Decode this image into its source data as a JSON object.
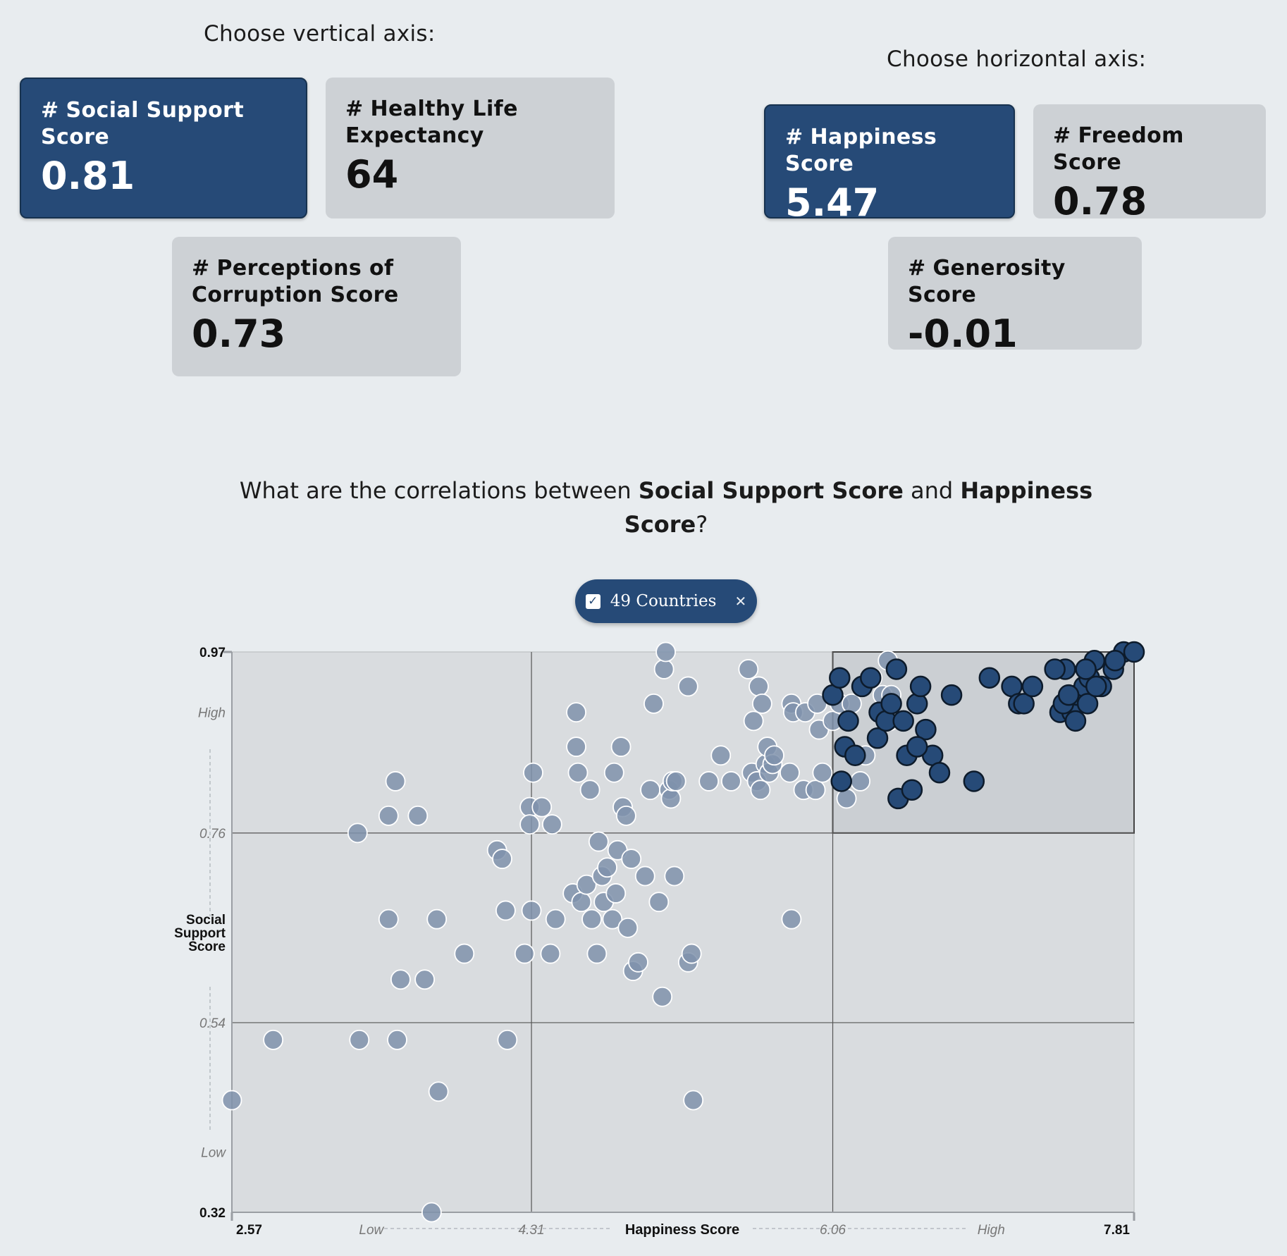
{
  "vertical_heading": "Choose vertical axis:",
  "horizontal_heading": "Choose horizontal axis:",
  "vertical_cards": [
    {
      "hash": "#",
      "label": "Social Support Score",
      "value": "0.81",
      "selected": true
    },
    {
      "hash": "#",
      "label": "Healthy Life Expectancy",
      "value": "64",
      "selected": false
    },
    {
      "hash": "#",
      "label": "Perceptions of Corruption Score",
      "value": "0.73",
      "selected": false
    }
  ],
  "horizontal_cards": [
    {
      "hash": "#",
      "label": "Happiness Score",
      "value": "5.47",
      "selected": true
    },
    {
      "hash": "#",
      "label": "Freedom Score",
      "value": "0.78",
      "selected": false
    },
    {
      "hash": "#",
      "label": "Generosity Score",
      "value": "-0.01",
      "selected": false
    }
  ],
  "question": {
    "prefix": "What are the correlations between ",
    "y_name": "Social Support Score",
    "middle": " and ",
    "x_name": "Happiness Score",
    "suffix": "?"
  },
  "filter_pill": {
    "label": "49 Countries",
    "check_icon": "checkbox-checked-icon",
    "close_icon": "close-icon"
  },
  "colors": {
    "highlight": "#264a77",
    "muted_point": "#7f92ab",
    "plot_bg": "#d9dcdf",
    "selection_bg": "#cbcfd3"
  },
  "chart_data": {
    "type": "scatter",
    "xlabel": "Happiness Score",
    "ylabel": "Social Support Score",
    "xlim": [
      2.57,
      7.81
    ],
    "ylim": [
      0.32,
      0.97
    ],
    "x_ticks": [
      {
        "label": "2.57",
        "value": 2.57,
        "style": "bold"
      },
      {
        "label": "Low",
        "value": 3.38,
        "style": "italic"
      },
      {
        "label": "4.31",
        "value": 4.31,
        "style": "italic"
      },
      {
        "label": "6.06",
        "value": 6.06,
        "style": "italic"
      },
      {
        "label": "High",
        "value": 6.98,
        "style": "italic"
      },
      {
        "label": "7.81",
        "value": 7.81,
        "style": "bold"
      }
    ],
    "y_ticks": [
      {
        "label": "0.97",
        "value": 0.97,
        "style": "bold"
      },
      {
        "label": "High",
        "value": 0.9,
        "style": "italic"
      },
      {
        "label": "0.76",
        "value": 0.76,
        "style": "italic"
      },
      {
        "label": "0.54",
        "value": 0.54,
        "style": "italic"
      },
      {
        "label": "Low",
        "value": 0.39,
        "style": "italic"
      },
      {
        "label": "0.32",
        "value": 0.32,
        "style": "bold"
      }
    ],
    "gridlines_x": [
      4.31,
      6.06
    ],
    "gridlines_y": [
      0.76,
      0.54
    ],
    "selection_box": {
      "x": [
        6.06,
        7.81
      ],
      "y": [
        0.76,
        0.97
      ]
    },
    "series": [
      {
        "highlighted": false,
        "points": [
          [
            2.57,
            0.45
          ],
          [
            2.81,
            0.52
          ],
          [
            3.3,
            0.76
          ],
          [
            3.31,
            0.52
          ],
          [
            3.48,
            0.78
          ],
          [
            3.48,
            0.66
          ],
          [
            3.52,
            0.82
          ],
          [
            3.53,
            0.52
          ],
          [
            3.55,
            0.59
          ],
          [
            3.65,
            0.78
          ],
          [
            3.69,
            0.59
          ],
          [
            3.76,
            0.66
          ],
          [
            3.77,
            0.46
          ],
          [
            3.73,
            0.32
          ],
          [
            3.92,
            0.62
          ],
          [
            4.11,
            0.74
          ],
          [
            4.14,
            0.73
          ],
          [
            4.16,
            0.67
          ],
          [
            4.17,
            0.52
          ],
          [
            4.27,
            0.62
          ],
          [
            4.3,
            0.79
          ],
          [
            4.3,
            0.77
          ],
          [
            4.31,
            0.67
          ],
          [
            4.32,
            0.83
          ],
          [
            4.37,
            0.79
          ],
          [
            4.42,
            0.62
          ],
          [
            4.43,
            0.77
          ],
          [
            4.45,
            0.66
          ],
          [
            4.55,
            0.69
          ],
          [
            4.57,
            0.9
          ],
          [
            4.58,
            0.83
          ],
          [
            4.57,
            0.86
          ],
          [
            4.6,
            0.68
          ],
          [
            4.63,
            0.7
          ],
          [
            4.65,
            0.81
          ],
          [
            4.66,
            0.66
          ],
          [
            4.69,
            0.62
          ],
          [
            4.7,
            0.75
          ],
          [
            4.72,
            0.71
          ],
          [
            4.73,
            0.68
          ],
          [
            4.75,
            0.72
          ],
          [
            4.78,
            0.66
          ],
          [
            4.79,
            0.83
          ],
          [
            4.8,
            0.69
          ],
          [
            4.81,
            0.74
          ],
          [
            4.83,
            0.86
          ],
          [
            4.84,
            0.79
          ],
          [
            4.86,
            0.78
          ],
          [
            4.87,
            0.65
          ],
          [
            4.89,
            0.73
          ],
          [
            4.9,
            0.6
          ],
          [
            4.93,
            0.61
          ],
          [
            4.97,
            0.71
          ],
          [
            5.0,
            0.81
          ],
          [
            5.02,
            0.91
          ],
          [
            5.05,
            0.68
          ],
          [
            5.07,
            0.57
          ],
          [
            5.08,
            0.95
          ],
          [
            5.09,
            0.97
          ],
          [
            5.11,
            0.81
          ],
          [
            5.12,
            0.8
          ],
          [
            5.13,
            0.82
          ],
          [
            5.14,
            0.71
          ],
          [
            5.15,
            0.82
          ],
          [
            5.22,
            0.61
          ],
          [
            5.22,
            0.93
          ],
          [
            5.24,
            0.62
          ],
          [
            5.25,
            0.45
          ],
          [
            5.34,
            0.82
          ],
          [
            5.41,
            0.85
          ],
          [
            5.47,
            0.82
          ],
          [
            5.57,
            0.95
          ],
          [
            5.59,
            0.83
          ],
          [
            5.6,
            0.89
          ],
          [
            5.62,
            0.82
          ],
          [
            5.63,
            0.93
          ],
          [
            5.64,
            0.81
          ],
          [
            5.65,
            0.91
          ],
          [
            5.67,
            0.84
          ],
          [
            5.68,
            0.86
          ],
          [
            5.69,
            0.83
          ],
          [
            5.71,
            0.84
          ],
          [
            5.72,
            0.85
          ],
          [
            5.81,
            0.83
          ],
          [
            5.82,
            0.91
          ],
          [
            5.82,
            0.66
          ],
          [
            5.83,
            0.9
          ],
          [
            5.89,
            0.81
          ],
          [
            5.9,
            0.9
          ],
          [
            5.97,
            0.91
          ],
          [
            5.96,
            0.81
          ],
          [
            5.98,
            0.88
          ],
          [
            6.0,
            0.83
          ],
          [
            6.06,
            0.89
          ],
          [
            6.1,
            0.91
          ],
          [
            6.14,
            0.8
          ],
          [
            6.17,
            0.91
          ],
          [
            6.22,
            0.82
          ],
          [
            6.25,
            0.85
          ],
          [
            6.29,
            0.94
          ],
          [
            6.35,
            0.92
          ],
          [
            6.38,
            0.96
          ],
          [
            6.39,
            0.89
          ],
          [
            6.4,
            0.92
          ]
        ]
      },
      {
        "highlighted": true,
        "points": [
          [
            6.06,
            0.92
          ],
          [
            6.1,
            0.94
          ],
          [
            6.13,
            0.86
          ],
          [
            6.11,
            0.82
          ],
          [
            6.15,
            0.89
          ],
          [
            6.19,
            0.85
          ],
          [
            6.23,
            0.93
          ],
          [
            6.28,
            0.94
          ],
          [
            6.32,
            0.87
          ],
          [
            6.33,
            0.9
          ],
          [
            6.37,
            0.89
          ],
          [
            6.4,
            0.91
          ],
          [
            6.43,
            0.95
          ],
          [
            6.44,
            0.8
          ],
          [
            6.47,
            0.89
          ],
          [
            6.52,
            0.81
          ],
          [
            6.55,
            0.91
          ],
          [
            6.57,
            0.93
          ],
          [
            6.64,
            0.85
          ],
          [
            6.75,
            0.92
          ],
          [
            6.88,
            0.82
          ],
          [
            6.97,
            0.94
          ],
          [
            7.1,
            0.93
          ],
          [
            7.14,
            0.91
          ],
          [
            7.17,
            0.91
          ],
          [
            7.22,
            0.93
          ],
          [
            7.38,
            0.9
          ],
          [
            7.41,
            0.95
          ],
          [
            7.45,
            0.9
          ],
          [
            7.47,
            0.89
          ],
          [
            7.48,
            0.92
          ],
          [
            7.52,
            0.93
          ],
          [
            7.54,
            0.91
          ],
          [
            7.55,
            0.94
          ],
          [
            7.58,
            0.96
          ],
          [
            7.62,
            0.93
          ],
          [
            7.69,
            0.95
          ],
          [
            7.75,
            0.97
          ],
          [
            7.81,
            0.97
          ],
          [
            7.4,
            0.91
          ],
          [
            7.53,
            0.95
          ],
          [
            7.59,
            0.93
          ],
          [
            6.49,
            0.85
          ],
          [
            6.6,
            0.88
          ],
          [
            7.7,
            0.96
          ],
          [
            6.55,
            0.86
          ],
          [
            6.68,
            0.83
          ],
          [
            7.43,
            0.92
          ],
          [
            7.35,
            0.95
          ]
        ]
      }
    ]
  }
}
